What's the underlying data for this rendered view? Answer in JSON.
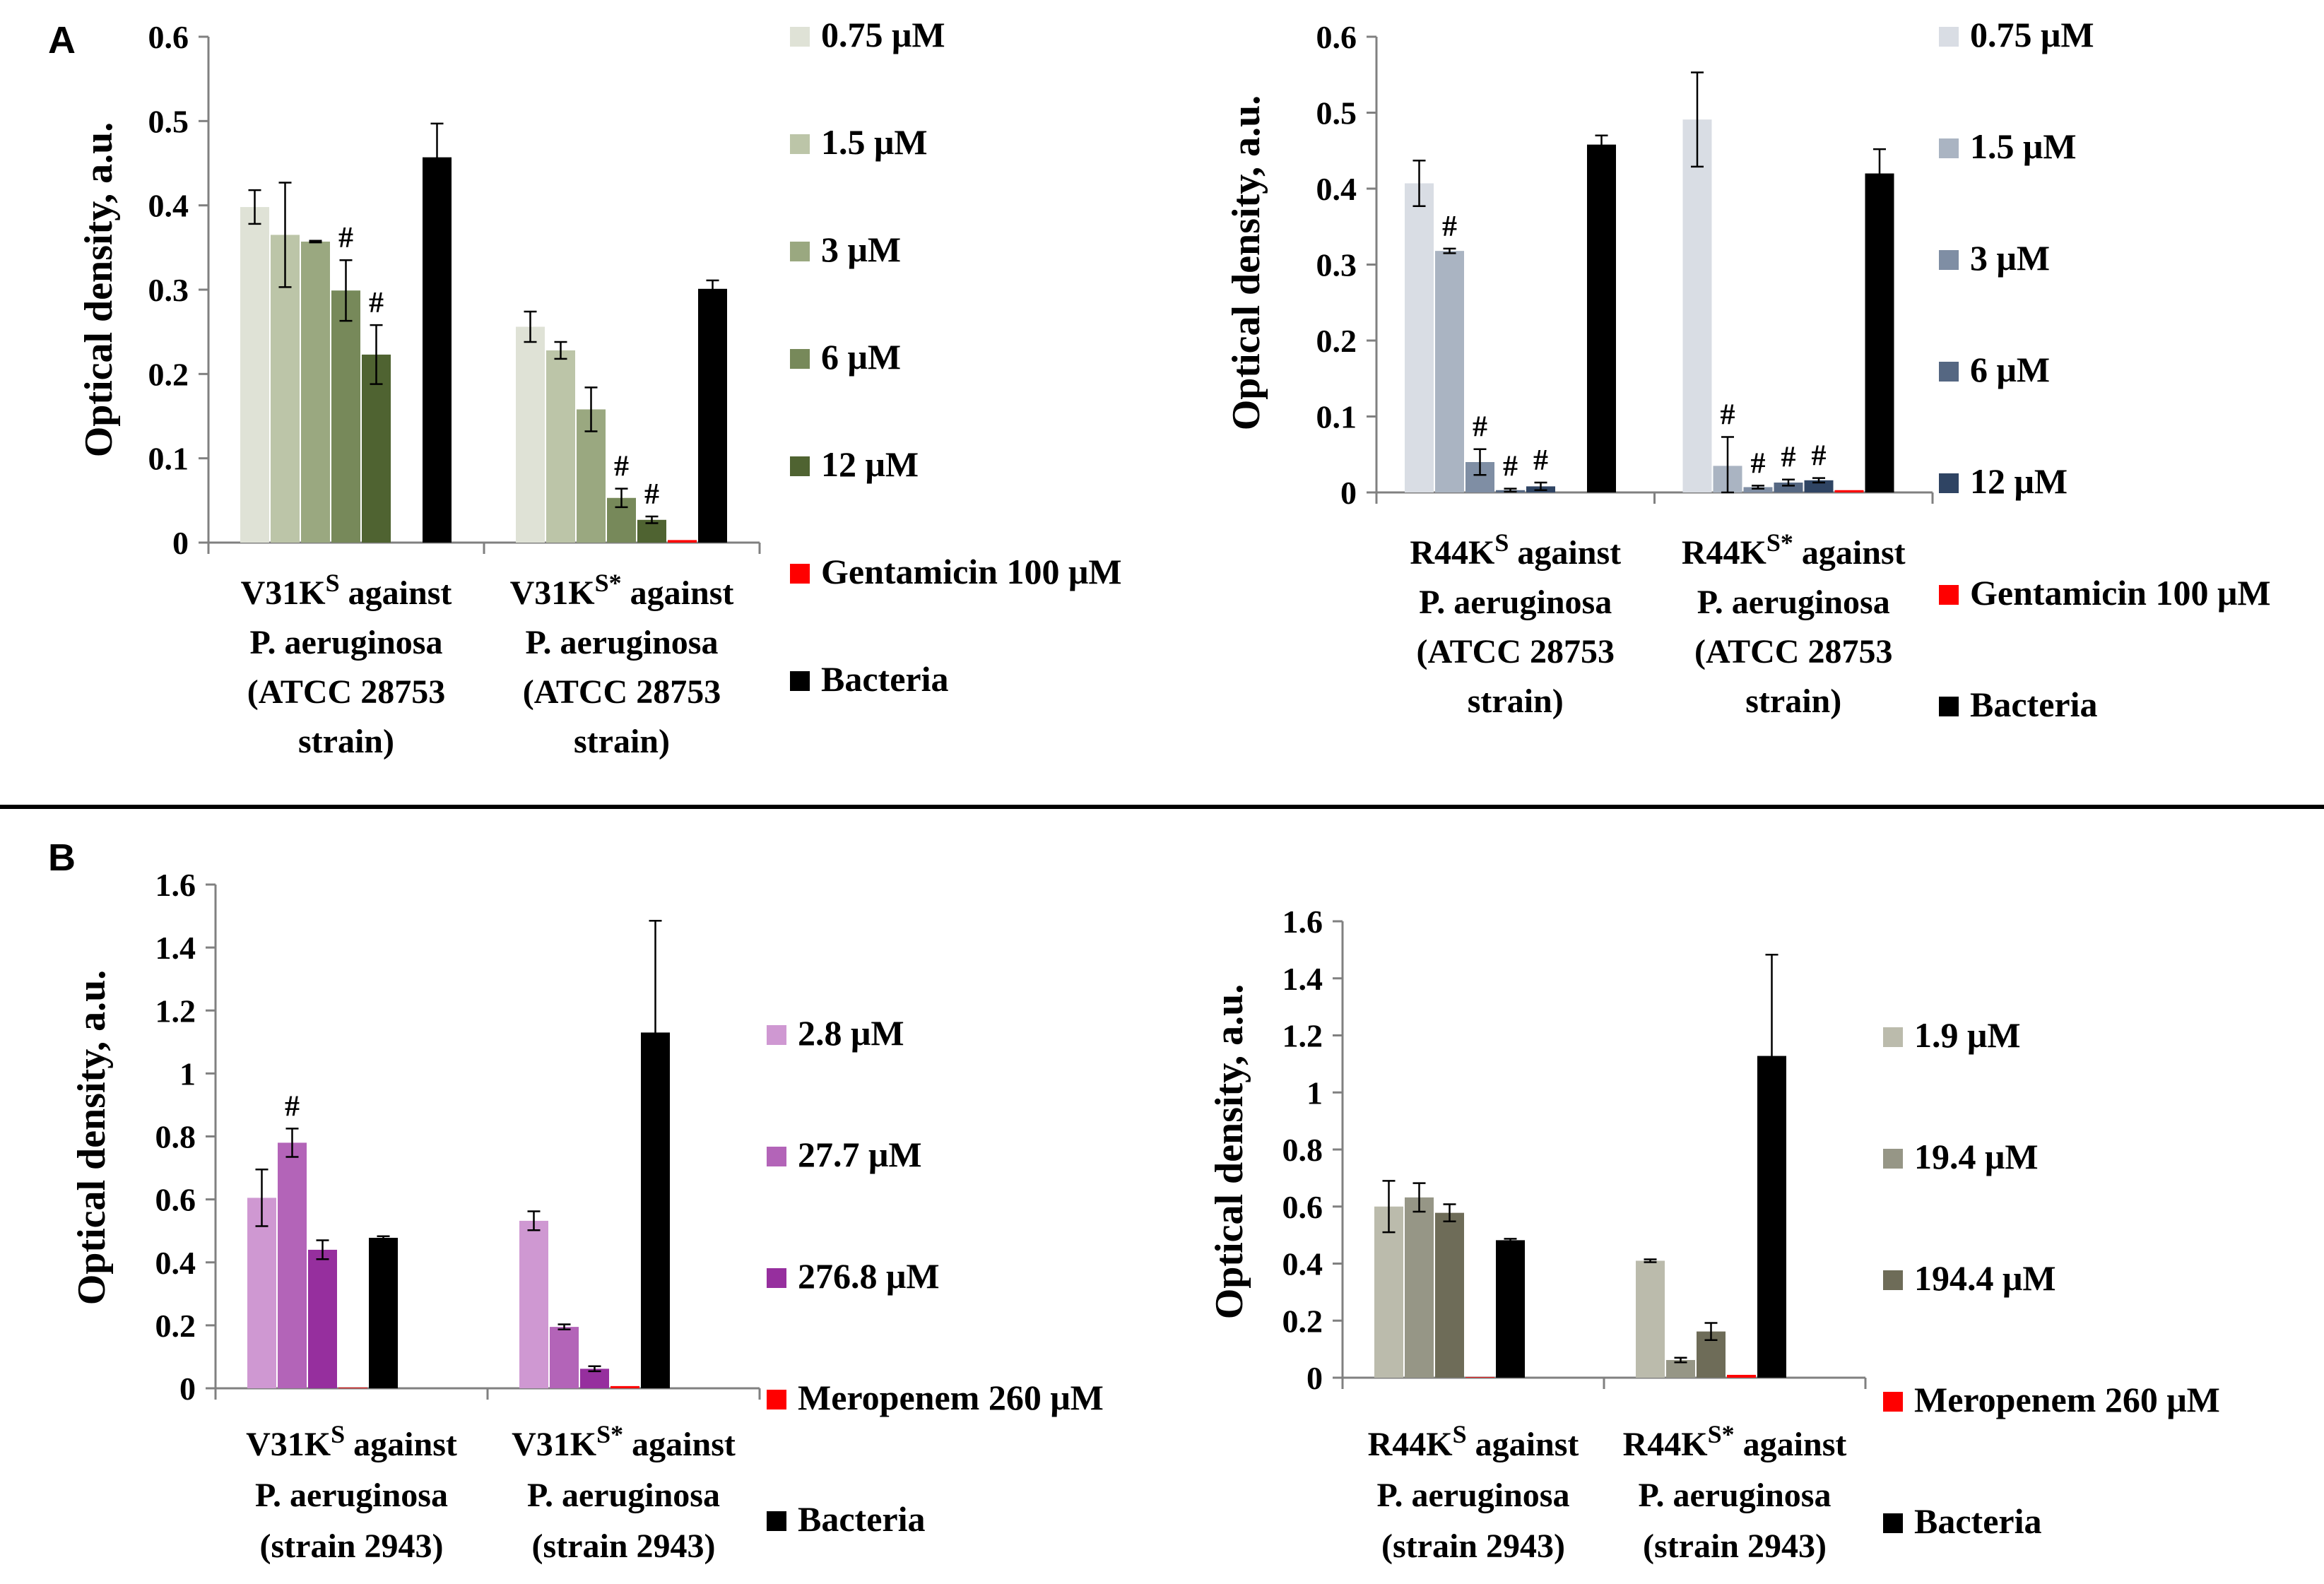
{
  "figure": {
    "panel_a_label": "A",
    "panel_b_label": "B"
  },
  "chart_data": [
    {
      "id": "A-left",
      "type": "bar",
      "ylabel": "Optical density, a.u.",
      "ylim": [
        0,
        0.6
      ],
      "yticks": [
        "0",
        "0.1",
        "0.2",
        "0.3",
        "0.4",
        "0.5",
        "0.6"
      ],
      "categories": [
        {
          "label": "V31K",
          "sup": "S",
          "lines": [
            "against",
            "P. aeruginosa",
            "(ATCC 28753",
            "strain)"
          ]
        },
        {
          "label": "V31K",
          "sup": "S*",
          "lines": [
            "against",
            "P. aeruginosa",
            "(ATCC 28753",
            "strain)"
          ]
        }
      ],
      "series": [
        {
          "name": "0.75 μM",
          "color": "#dfe2d6",
          "values": [
            0.398,
            0.256
          ],
          "errors": [
            0.02,
            0.018
          ],
          "marks": [
            "",
            ""
          ]
        },
        {
          "name": "1.5 μM",
          "color": "#bcc5a8",
          "values": [
            0.365,
            0.228
          ],
          "errors": [
            0.062,
            0.01
          ],
          "marks": [
            "",
            ""
          ]
        },
        {
          "name": "3 μM",
          "color": "#9aa880",
          "values": [
            0.357,
            0.158
          ],
          "errors": [
            0.001,
            0.026
          ],
          "marks": [
            "",
            ""
          ]
        },
        {
          "name": "6 μM",
          "color": "#77895a",
          "values": [
            0.299,
            0.053
          ],
          "errors": [
            0.036,
            0.011
          ],
          "marks": [
            "#",
            "#"
          ]
        },
        {
          "name": "12 μM",
          "color": "#4f6331",
          "values": [
            0.223,
            0.027
          ],
          "errors": [
            0.035,
            0.004
          ],
          "marks": [
            "#",
            "#"
          ]
        },
        {
          "name": "Gentamicin 100 μM",
          "color": "#ff0000",
          "values": [
            0,
            0.003
          ],
          "errors": [
            0,
            0
          ],
          "marks": [
            "",
            ""
          ]
        },
        {
          "name": "Bacteria",
          "color": "#000000",
          "values": [
            0.457,
            0.301
          ],
          "errors": [
            0.04,
            0.01
          ],
          "marks": [
            "",
            ""
          ]
        }
      ]
    },
    {
      "id": "A-right",
      "type": "bar",
      "ylabel": "Optical density, a.u.",
      "ylim": [
        0,
        0.6
      ],
      "yticks": [
        "0",
        "0.1",
        "0.2",
        "0.3",
        "0.4",
        "0.5",
        "0.6"
      ],
      "categories": [
        {
          "label": "R44K",
          "sup": "S",
          "lines": [
            "against",
            "P. aeruginosa",
            "(ATCC 28753",
            "strain)"
          ]
        },
        {
          "label": "R44K",
          "sup": "S*",
          "lines": [
            "against",
            "P. aeruginosa",
            "(ATCC 28753",
            "strain)"
          ]
        }
      ],
      "series": [
        {
          "name": "0.75 μM",
          "color": "#d9dde4",
          "values": [
            0.407,
            0.491
          ],
          "errors": [
            0.03,
            0.062
          ],
          "marks": [
            "",
            ""
          ]
        },
        {
          "name": "1.5 μM",
          "color": "#aab4c2",
          "values": [
            0.318,
            0.035
          ],
          "errors": [
            0.003,
            0.038
          ],
          "marks": [
            "#",
            "#"
          ]
        },
        {
          "name": "3 μM",
          "color": "#7f8ea4",
          "values": [
            0.04,
            0.007
          ],
          "errors": [
            0.017,
            0.002
          ],
          "marks": [
            "#",
            "#"
          ]
        },
        {
          "name": "6 μM",
          "color": "#556782",
          "values": [
            0.003,
            0.013
          ],
          "errors": [
            0.002,
            0.004
          ],
          "marks": [
            "#",
            "#"
          ]
        },
        {
          "name": "12 μM",
          "color": "#2f4463",
          "values": [
            0.008,
            0.016
          ],
          "errors": [
            0.005,
            0.003
          ],
          "marks": [
            "#",
            "#"
          ]
        },
        {
          "name": "Gentamicin 100 μM",
          "color": "#ff0000",
          "values": [
            0,
            0.003
          ],
          "errors": [
            0,
            0
          ],
          "marks": [
            "",
            ""
          ]
        },
        {
          "name": "Bacteria",
          "color": "#000000",
          "values": [
            0.458,
            0.42
          ],
          "errors": [
            0.012,
            0.032
          ],
          "marks": [
            "",
            ""
          ]
        }
      ]
    },
    {
      "id": "B-left",
      "type": "bar",
      "ylabel": "Optical density, a.u.",
      "ylim": [
        0,
        1.6
      ],
      "yticks": [
        "0",
        "0.2",
        "0.4",
        "0.6",
        "0.8",
        "1",
        "1.2",
        "1.4",
        "1.6"
      ],
      "categories": [
        {
          "label": "V31K",
          "sup": "S",
          "lines": [
            "against",
            "P. aeruginosa",
            "(strain 2943)"
          ]
        },
        {
          "label": "V31K",
          "sup": "S*",
          "lines": [
            "against",
            "P. aeruginosa",
            "(strain 2943)"
          ]
        }
      ],
      "series": [
        {
          "name": "2.8 μM",
          "color": "#cf98d2",
          "values": [
            0.605,
            0.532
          ],
          "errors": [
            0.09,
            0.03
          ],
          "marks": [
            "",
            ""
          ]
        },
        {
          "name": "27.7 μM",
          "color": "#b364b8",
          "values": [
            0.78,
            0.195
          ],
          "errors": [
            0.045,
            0.008
          ],
          "marks": [
            "#",
            ""
          ]
        },
        {
          "name": "276.8 μM",
          "color": "#962f9e",
          "values": [
            0.44,
            0.062
          ],
          "errors": [
            0.03,
            0.008
          ],
          "marks": [
            "",
            ""
          ]
        },
        {
          "name": "Meropenem 260 μM",
          "color": "#ff0000",
          "values": [
            0.002,
            0.007
          ],
          "errors": [
            0,
            0
          ],
          "marks": [
            "",
            ""
          ]
        },
        {
          "name": "Bacteria",
          "color": "#000000",
          "values": [
            0.478,
            1.13
          ],
          "errors": [
            0.005,
            0.355
          ],
          "marks": [
            "",
            ""
          ]
        }
      ]
    },
    {
      "id": "B-right",
      "type": "bar",
      "ylabel": "Optical density, a.u.",
      "ylim": [
        0,
        1.6
      ],
      "yticks": [
        "0",
        "0.2",
        "0.4",
        "0.6",
        "0.8",
        "1",
        "1.2",
        "1.4",
        "1.6"
      ],
      "categories": [
        {
          "label": "R44K",
          "sup": "S",
          "lines": [
            "against",
            "P. aeruginosa",
            "(strain 2943)"
          ]
        },
        {
          "label": "R44K",
          "sup": "S*",
          "lines": [
            "against",
            "P. aeruginosa",
            "(strain 2943)"
          ]
        }
      ],
      "series": [
        {
          "name": "1.9 μM",
          "color": "#bbbbac",
          "values": [
            0.6,
            0.41
          ],
          "errors": [
            0.09,
            0.005
          ],
          "marks": [
            "",
            ""
          ]
        },
        {
          "name": "19.4 μM",
          "color": "#969686",
          "values": [
            0.632,
            0.062
          ],
          "errors": [
            0.05,
            0.008
          ],
          "marks": [
            "",
            ""
          ]
        },
        {
          "name": "194.4 μM",
          "color": "#6e6c58",
          "values": [
            0.578,
            0.162
          ],
          "errors": [
            0.03,
            0.03
          ],
          "marks": [
            "",
            ""
          ]
        },
        {
          "name": "Meropenem 260 μM",
          "color": "#ff0000",
          "values": [
            0.002,
            0.01
          ],
          "errors": [
            0,
            0
          ],
          "marks": [
            "",
            ""
          ]
        },
        {
          "name": "Bacteria",
          "color": "#000000",
          "values": [
            0.482,
            1.128
          ],
          "errors": [
            0.005,
            0.355
          ],
          "marks": [
            "",
            ""
          ]
        }
      ]
    }
  ]
}
